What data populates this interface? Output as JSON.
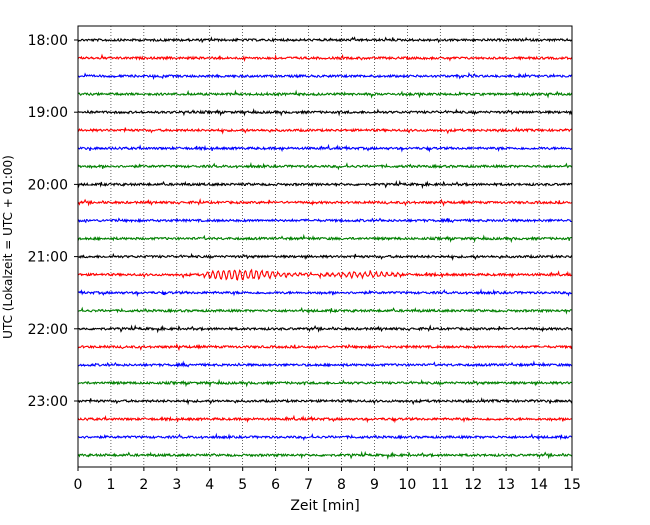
{
  "chart_data": {
    "type": "line",
    "title": "",
    "xlabel": "Zeit  [min]",
    "ylabel": "UTC (Lokalzeit = UTC + 01:00)",
    "xlim": [
      0,
      15
    ],
    "x_ticks": [
      0,
      1,
      2,
      3,
      4,
      5,
      6,
      7,
      8,
      9,
      10,
      11,
      12,
      13,
      14,
      15
    ],
    "y_tick_labels": [
      "18:00",
      "19:00",
      "20:00",
      "21:00",
      "22:00",
      "23:00"
    ],
    "grid": "vertical dotted at each minute",
    "trace_interval_min": 15,
    "trace_start": "18:00",
    "trace_count": 24,
    "trace_colors": [
      "#000000",
      "#ff0000",
      "#0000ff",
      "#008000"
    ],
    "series": [
      {
        "start": "18:00"
      },
      {
        "start": "18:15"
      },
      {
        "start": "18:30"
      },
      {
        "start": "18:45"
      },
      {
        "start": "19:00"
      },
      {
        "start": "19:15"
      },
      {
        "start": "19:30"
      },
      {
        "start": "19:45"
      },
      {
        "start": "20:00"
      },
      {
        "start": "20:15"
      },
      {
        "start": "20:30"
      },
      {
        "start": "20:45"
      },
      {
        "start": "21:00"
      },
      {
        "start": "21:15",
        "event": {
          "from_min": 3.8,
          "to_min": 9.8
        }
      },
      {
        "start": "21:30"
      },
      {
        "start": "21:45"
      },
      {
        "start": "22:00"
      },
      {
        "start": "22:15"
      },
      {
        "start": "22:30"
      },
      {
        "start": "22:45"
      },
      {
        "start": "23:00"
      },
      {
        "start": "23:15"
      },
      {
        "start": "23:30"
      },
      {
        "start": "23:45"
      }
    ]
  }
}
